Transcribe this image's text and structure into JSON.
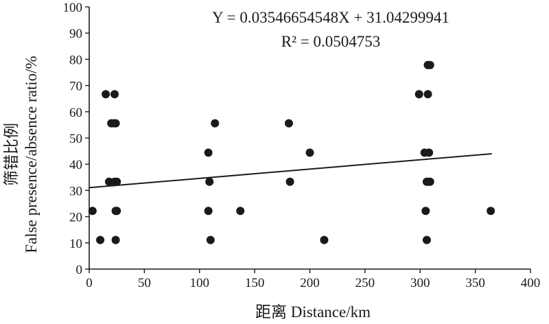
{
  "chart_data": {
    "type": "scatter",
    "xlabel": "距离 Distance/km",
    "ylabel_zh": "筛错比例",
    "ylabel_en": "False presence/absence ratio/%",
    "xlim": [
      0,
      400
    ],
    "ylim": [
      0,
      100
    ],
    "x_ticks": [
      0,
      50,
      100,
      150,
      200,
      250,
      300,
      350,
      400
    ],
    "y_ticks": [
      0,
      10,
      20,
      30,
      40,
      50,
      60,
      70,
      80,
      90,
      100
    ],
    "grid": false,
    "colors": {
      "points": "#1a1a1a",
      "line": "#1a1a1a",
      "axis": "#1a1a1a"
    },
    "equation": "Y = 0.03546654548X + 31.04299941",
    "r_squared_label": "R² = 0.0504753",
    "trendline": {
      "slope": 0.03546654548,
      "intercept": 31.04299941,
      "x_start": 0,
      "x_end": 365
    },
    "points": [
      {
        "x": 3,
        "y": 22.2
      },
      {
        "x": 10,
        "y": 11.1
      },
      {
        "x": 15,
        "y": 66.7
      },
      {
        "x": 18,
        "y": 33.3
      },
      {
        "x": 20,
        "y": 55.6
      },
      {
        "x": 22,
        "y": 55.6
      },
      {
        "x": 23,
        "y": 66.7
      },
      {
        "x": 23,
        "y": 33.3
      },
      {
        "x": 24,
        "y": 55.6
      },
      {
        "x": 24,
        "y": 22.2
      },
      {
        "x": 24,
        "y": 11.1
      },
      {
        "x": 25,
        "y": 33.3
      },
      {
        "x": 25,
        "y": 22.2
      },
      {
        "x": 108,
        "y": 44.4
      },
      {
        "x": 108,
        "y": 22.2
      },
      {
        "x": 109,
        "y": 33.3
      },
      {
        "x": 110,
        "y": 11.1
      },
      {
        "x": 114,
        "y": 55.6
      },
      {
        "x": 137,
        "y": 22.2
      },
      {
        "x": 181,
        "y": 55.6
      },
      {
        "x": 182,
        "y": 33.3
      },
      {
        "x": 200,
        "y": 44.4
      },
      {
        "x": 213,
        "y": 11.1
      },
      {
        "x": 299,
        "y": 66.7
      },
      {
        "x": 304,
        "y": 44.4
      },
      {
        "x": 305,
        "y": 22.2
      },
      {
        "x": 306,
        "y": 33.3
      },
      {
        "x": 306,
        "y": 11.1
      },
      {
        "x": 307,
        "y": 77.8
      },
      {
        "x": 307,
        "y": 66.7
      },
      {
        "x": 308,
        "y": 44.4
      },
      {
        "x": 308,
        "y": 33.3
      },
      {
        "x": 309,
        "y": 77.8
      },
      {
        "x": 309,
        "y": 33.3
      },
      {
        "x": 364,
        "y": 22.2
      }
    ]
  }
}
